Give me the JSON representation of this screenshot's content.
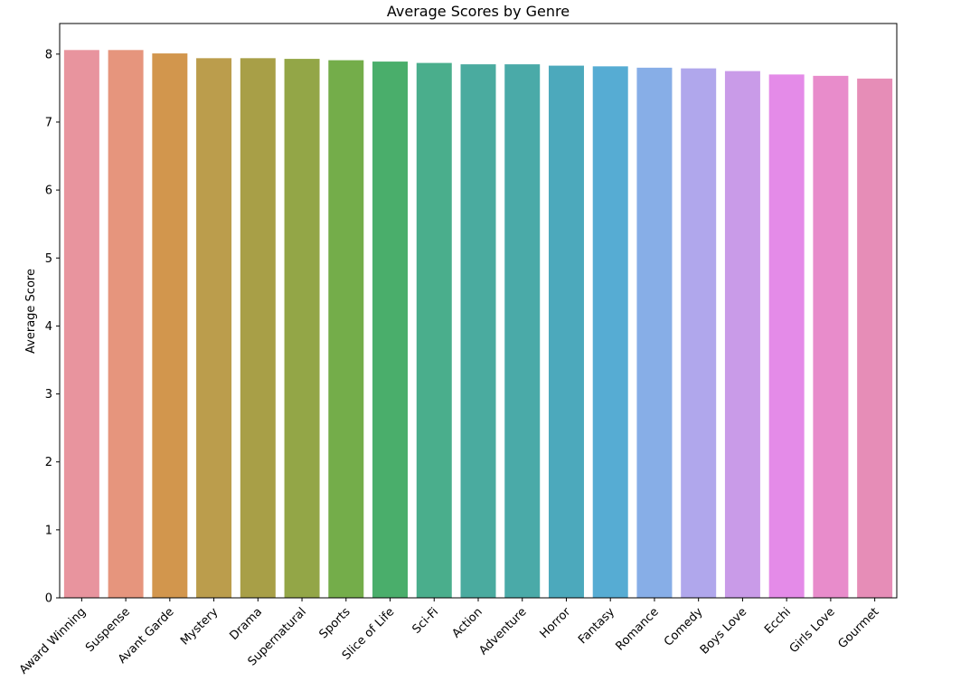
{
  "chart_data": {
    "type": "bar",
    "title": "Average Scores by Genre",
    "xlabel": "",
    "ylabel": "Average Score",
    "ylim": [
      0,
      8.45
    ],
    "yticks": [
      0,
      1,
      2,
      3,
      4,
      5,
      6,
      7,
      8
    ],
    "grid": false,
    "categories": [
      "Award Winning",
      "Suspense",
      "Avant Garde",
      "Mystery",
      "Drama",
      "Supernatural",
      "Sports",
      "Slice of Life",
      "Sci-Fi",
      "Action",
      "Adventure",
      "Horror",
      "Fantasy",
      "Romance",
      "Comedy",
      "Boys Love",
      "Ecchi",
      "Girls Love",
      "Gourmet"
    ],
    "values": [
      8.06,
      8.06,
      8.01,
      7.94,
      7.94,
      7.93,
      7.91,
      7.89,
      7.87,
      7.85,
      7.85,
      7.83,
      7.82,
      7.8,
      7.79,
      7.75,
      7.7,
      7.68,
      7.64
    ],
    "colors": [
      "#e8949e",
      "#e6957d",
      "#d2964d",
      "#bb9d4c",
      "#a89f47",
      "#93a647",
      "#74ad4a",
      "#4aae6b",
      "#4aae8c",
      "#4aab9f",
      "#4aaaa8",
      "#4ca9bc",
      "#56acd3",
      "#87aee7",
      "#b0a7ec",
      "#c99be8",
      "#e48be8",
      "#e88ccb",
      "#e68db7"
    ]
  }
}
